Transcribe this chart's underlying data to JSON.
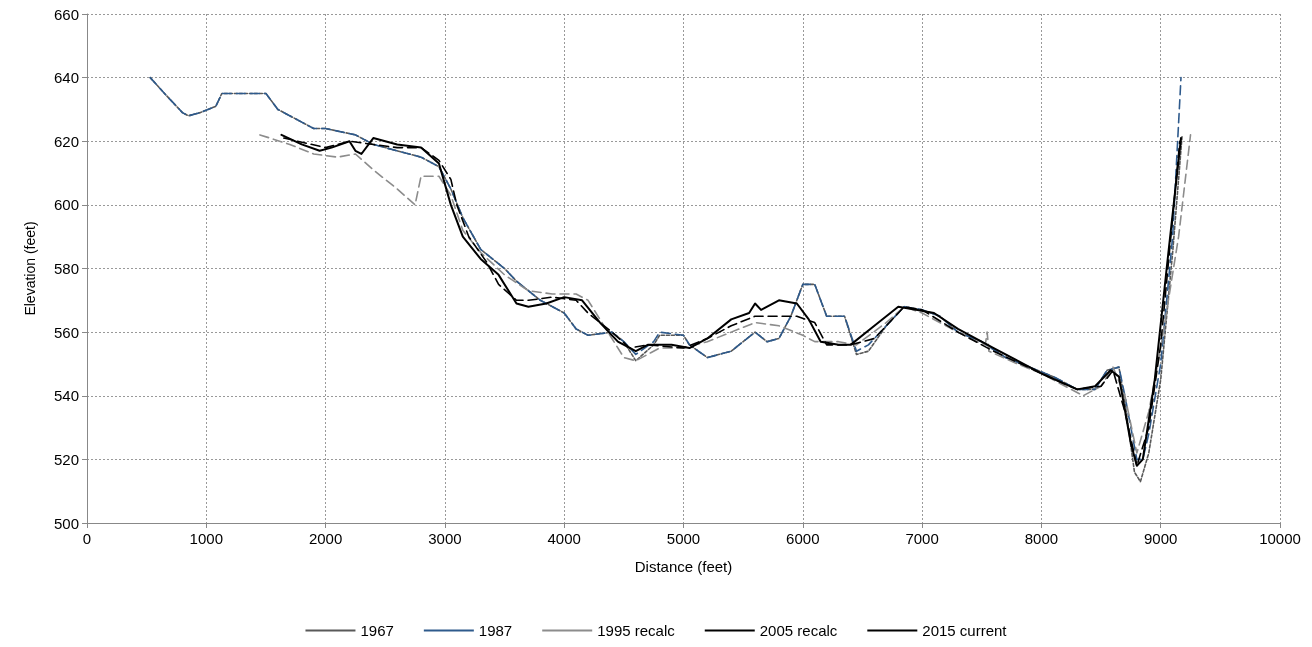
{
  "chart_data": {
    "type": "line",
    "xlabel": "Distance (feet)",
    "ylabel": "Elevation (feet)",
    "xlim": [
      0,
      10000
    ],
    "xticks": [
      0,
      1000,
      2000,
      3000,
      4000,
      5000,
      6000,
      7000,
      8000,
      9000,
      10000
    ],
    "ylim": [
      500,
      660
    ],
    "yticks": [
      500,
      520,
      540,
      560,
      580,
      600,
      620,
      640,
      660
    ],
    "grid": true,
    "legend": "bottom",
    "marker": "none",
    "series": [
      {
        "name": "1967",
        "color": "#595959",
        "line_style": "dotted",
        "x": [
          530,
          650,
          800,
          850,
          950,
          1080,
          1130,
          1250,
          1500,
          1600,
          1800,
          1900,
          2000,
          2250,
          2400,
          2600,
          2800,
          2950,
          3050,
          3150,
          3300,
          3500,
          3600,
          3800,
          4000,
          4100,
          4200,
          4400,
          4500,
          4600,
          4750,
          4800,
          5000,
          5050,
          5200,
          5400,
          5600,
          5700,
          5800,
          5900,
          6000,
          6100,
          6200,
          6350,
          6450,
          6550,
          6700,
          6850,
          7000,
          7150,
          7300,
          7500,
          7700,
          7900,
          8100,
          8300,
          8450,
          8550,
          8650,
          8700,
          8780,
          8830,
          8900,
          9000,
          9100,
          9180
        ],
        "values": [
          640,
          635,
          629,
          628,
          629,
          631,
          635,
          635,
          635,
          630,
          626,
          624,
          624,
          622,
          619,
          617,
          615,
          612,
          605,
          596,
          586,
          580,
          576,
          570,
          566,
          561,
          559,
          560,
          557,
          551,
          556,
          559,
          559,
          556,
          552,
          554,
          560,
          557,
          558,
          565,
          575,
          575,
          565,
          565,
          553,
          554,
          562,
          568,
          567,
          565,
          560,
          557,
          552,
          549,
          546,
          542,
          542,
          548,
          549,
          538,
          516,
          513,
          522,
          545,
          585,
          622
        ]
      },
      {
        "name": "1987",
        "color": "#2e5a8c",
        "line_style": "dashed",
        "x": [
          530,
          650,
          800,
          850,
          950,
          1080,
          1130,
          1250,
          1500,
          1600,
          1800,
          1900,
          2000,
          2250,
          2400,
          2600,
          2800,
          2950,
          3050,
          3150,
          3300,
          3500,
          3600,
          3800,
          4000,
          4100,
          4200,
          4400,
          4500,
          4600,
          4750,
          4800,
          5000,
          5050,
          5200,
          5400,
          5600,
          5700,
          5800,
          5900,
          6000,
          6100,
          6200,
          6350,
          6450,
          6550,
          6700,
          6850,
          7000,
          7150,
          7300,
          7500,
          7700,
          7900,
          8100,
          8300,
          8450,
          8550,
          8650,
          8700,
          8800,
          8850,
          8900,
          9000,
          9100,
          9170
        ],
        "values": [
          640,
          635,
          629,
          628,
          629,
          631,
          635,
          635,
          635,
          630,
          626,
          624,
          624,
          622,
          619,
          617,
          615,
          612,
          605,
          596,
          586,
          580,
          576,
          570,
          566,
          561,
          559,
          560,
          557,
          553,
          557,
          560,
          559,
          556,
          552,
          554,
          560,
          557,
          558,
          565,
          575,
          575,
          565,
          565,
          554,
          556,
          562,
          568,
          567,
          565,
          560,
          557,
          552,
          549,
          546,
          542,
          542,
          548,
          549,
          540,
          520,
          520,
          528,
          550,
          590,
          640
        ]
      },
      {
        "name": "1995 recalc",
        "color": "#8c8c8c",
        "line_style": "dashed",
        "x": [
          1450,
          1700,
          1900,
          2100,
          2250,
          2400,
          2600,
          2750,
          2800,
          2950,
          3050,
          3150,
          3300,
          3500,
          3700,
          3900,
          4100,
          4200,
          4350,
          4500,
          4600,
          4800,
          5000,
          5200,
          5400,
          5600,
          5800,
          6000,
          6100,
          6300,
          6450,
          6700,
          6850,
          7000,
          7200,
          7400,
          7530,
          7545,
          7560,
          7800,
          8000,
          8200,
          8350,
          8500,
          8600,
          8700,
          8800,
          8900,
          9000,
          9150,
          9250
        ],
        "values": [
          622,
          619,
          616,
          615,
          616,
          611,
          605,
          600,
          609,
          609,
          603,
          592,
          585,
          578,
          573,
          572,
          572,
          570,
          561,
          552,
          551,
          555,
          555,
          557,
          560,
          563,
          562,
          559,
          557,
          557,
          556,
          563,
          568,
          566,
          562,
          558,
          556,
          560,
          554,
          550,
          547,
          543,
          540,
          543,
          549,
          540,
          522,
          535,
          555,
          590,
          622
        ]
      },
      {
        "name": "2005 recalc",
        "color": "#000000",
        "line_style": "dashed",
        "x": [
          1650,
          2000,
          2200,
          2400,
          2600,
          2800,
          2950,
          3050,
          3100,
          3200,
          3350,
          3450,
          3600,
          3700,
          3900,
          4100,
          4200,
          4400,
          4550,
          4700,
          5000,
          5200,
          5400,
          5600,
          5800,
          5950,
          6100,
          6200,
          6400,
          6600,
          6850,
          7000,
          7300,
          7600,
          8000,
          8300,
          8500,
          8600,
          8700,
          8800,
          8900,
          9000,
          9160
        ],
        "values": [
          621,
          618,
          620,
          619,
          618,
          618,
          614,
          608,
          600,
          590,
          582,
          575,
          570,
          570,
          571,
          570,
          566,
          560,
          555,
          556,
          555,
          558,
          562,
          565,
          565,
          565,
          563,
          556,
          556,
          558,
          568,
          567,
          560,
          554,
          547,
          542,
          543,
          548,
          535,
          518,
          530,
          556,
          620
        ]
      },
      {
        "name": "2015 current",
        "color": "#000000",
        "line_style": "solid",
        "x": [
          1630,
          1800,
          1950,
          2050,
          2200,
          2250,
          2300,
          2400,
          2600,
          2800,
          2950,
          3050,
          3150,
          3300,
          3450,
          3600,
          3700,
          3850,
          4000,
          4150,
          4300,
          4450,
          4600,
          4700,
          4900,
          5050,
          5200,
          5400,
          5550,
          5600,
          5650,
          5800,
          5950,
          6050,
          6150,
          6300,
          6400,
          6600,
          6800,
          6950,
          7100,
          7300,
          7600,
          8000,
          8300,
          8450,
          8580,
          8650,
          8750,
          8800,
          8850,
          8950,
          9050,
          9170
        ],
        "values": [
          622,
          619,
          617,
          618,
          620,
          617,
          616,
          621,
          619,
          618,
          613,
          600,
          590,
          583,
          578,
          569,
          568,
          569,
          571,
          570,
          563,
          557,
          554,
          556,
          556,
          555,
          558,
          564,
          566,
          569,
          567,
          570,
          569,
          564,
          557,
          556,
          556,
          562,
          568,
          567,
          566,
          561,
          555,
          547,
          542,
          543,
          548,
          546,
          525,
          518,
          520,
          545,
          580,
          621
        ]
      }
    ]
  }
}
